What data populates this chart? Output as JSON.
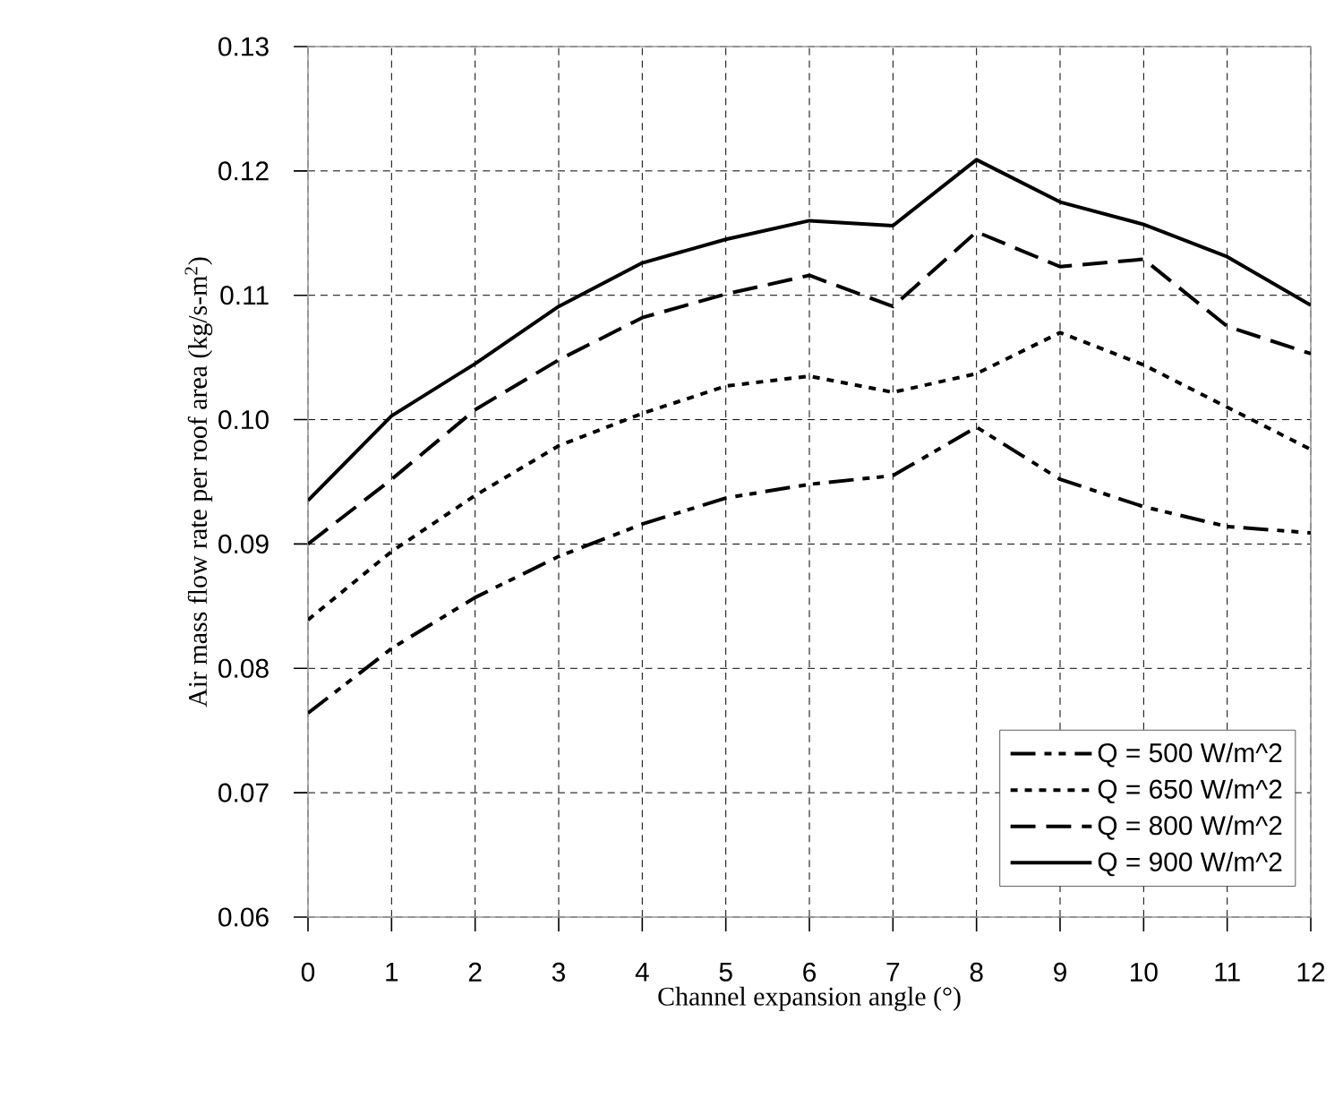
{
  "chart_data": {
    "type": "line",
    "xlabel": "Channel expansion angle (°)",
    "ylabel": "Air mass flow rate per roof area (kg/s-m$^{2}$)",
    "x": [
      0,
      1,
      2,
      3,
      4,
      5,
      6,
      7,
      8,
      9,
      10,
      11,
      12
    ],
    "series": [
      {
        "name": "Q = 500 W/m^2",
        "color": "#000000",
        "line_style": "dashdotdot",
        "values": [
          0.0764,
          0.0816,
          0.0857,
          0.089,
          0.0916,
          0.0937,
          0.0948,
          0.0955,
          0.0994,
          0.0952,
          0.093,
          0.0914,
          0.0909
        ]
      },
      {
        "name": "Q = 650 W/m^2",
        "color": "#000000",
        "line_style": "dotted",
        "values": [
          0.0839,
          0.0894,
          0.0939,
          0.0979,
          0.1005,
          0.1027,
          0.1035,
          0.1022,
          0.1037,
          0.107,
          0.1044,
          0.101,
          0.0976
        ]
      },
      {
        "name": "Q = 800 W/m^2",
        "color": "#000000",
        "line_style": "dashed",
        "values": [
          0.09,
          0.0952,
          0.1008,
          0.1048,
          0.1082,
          0.1101,
          0.1116,
          0.1091,
          0.1151,
          0.1123,
          0.1129,
          0.1075,
          0.1053
        ]
      },
      {
        "name": "Q = 900 W/m^2",
        "color": "#000000",
        "line_style": "solid",
        "values": [
          0.0935,
          0.1003,
          0.1045,
          0.1091,
          0.1126,
          0.1145,
          0.116,
          0.1156,
          0.1209,
          0.1175,
          0.1157,
          0.1131,
          0.1092
        ]
      }
    ],
    "xlim": [
      0,
      12
    ],
    "xticks": [
      0,
      1,
      2,
      3,
      4,
      5,
      6,
      7,
      8,
      9,
      10,
      11,
      12
    ],
    "ylim": [
      0.06,
      0.13
    ],
    "yticks": [
      0.06,
      0.07,
      0.08,
      0.09,
      {
        "value": 0.1,
        "label": "0.10"
      },
      0.11,
      0.12,
      0.13
    ],
    "grid": true,
    "legend": "bottom right"
  }
}
